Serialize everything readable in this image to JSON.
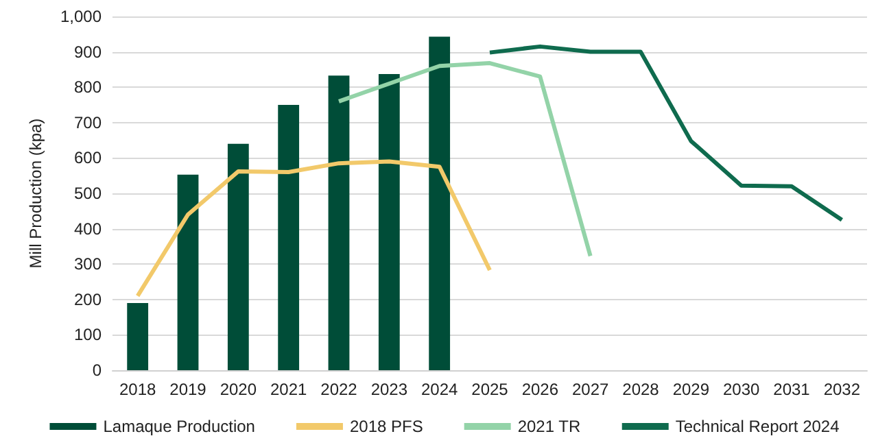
{
  "chart_data": {
    "type": "bar",
    "ylabel": "Mill Production (kpa)",
    "categories": [
      "2018",
      "2019",
      "2020",
      "2021",
      "2022",
      "2023",
      "2024",
      "2025",
      "2026",
      "2027",
      "2028",
      "2029",
      "2030",
      "2031",
      "2032"
    ],
    "series": [
      {
        "name": "Lamaque Production",
        "color": "#004d38",
        "values": [
          190,
          553,
          640,
          750,
          833,
          837,
          943,
          null,
          null,
          null,
          null,
          null,
          null,
          null,
          null
        ]
      },
      {
        "name": "2018 PFS",
        "type": "line",
        "color": "#f2c96a",
        "values": [
          210,
          440,
          562,
          560,
          585,
          590,
          575,
          283,
          null,
          null,
          null,
          null,
          null,
          null,
          null
        ]
      },
      {
        "name": "2021 TR",
        "type": "line",
        "color": "#93d3a8",
        "values": [
          null,
          null,
          null,
          null,
          760,
          810,
          860,
          868,
          830,
          323,
          null,
          null,
          null,
          null,
          null
        ]
      },
      {
        "name": "Technical Report 2024",
        "type": "line",
        "color": "#0f6b4e",
        "values": [
          null,
          null,
          null,
          null,
          null,
          null,
          null,
          898,
          915,
          900,
          900,
          648,
          522,
          520,
          425
        ]
      }
    ],
    "ylim": [
      0,
      1000
    ],
    "yticks": [
      0,
      100,
      200,
      300,
      400,
      500,
      600,
      700,
      800,
      900,
      {
        "value": 1000,
        "label": "1,000"
      }
    ],
    "grid": "y",
    "legend": "bottom",
    "marker": "none"
  }
}
